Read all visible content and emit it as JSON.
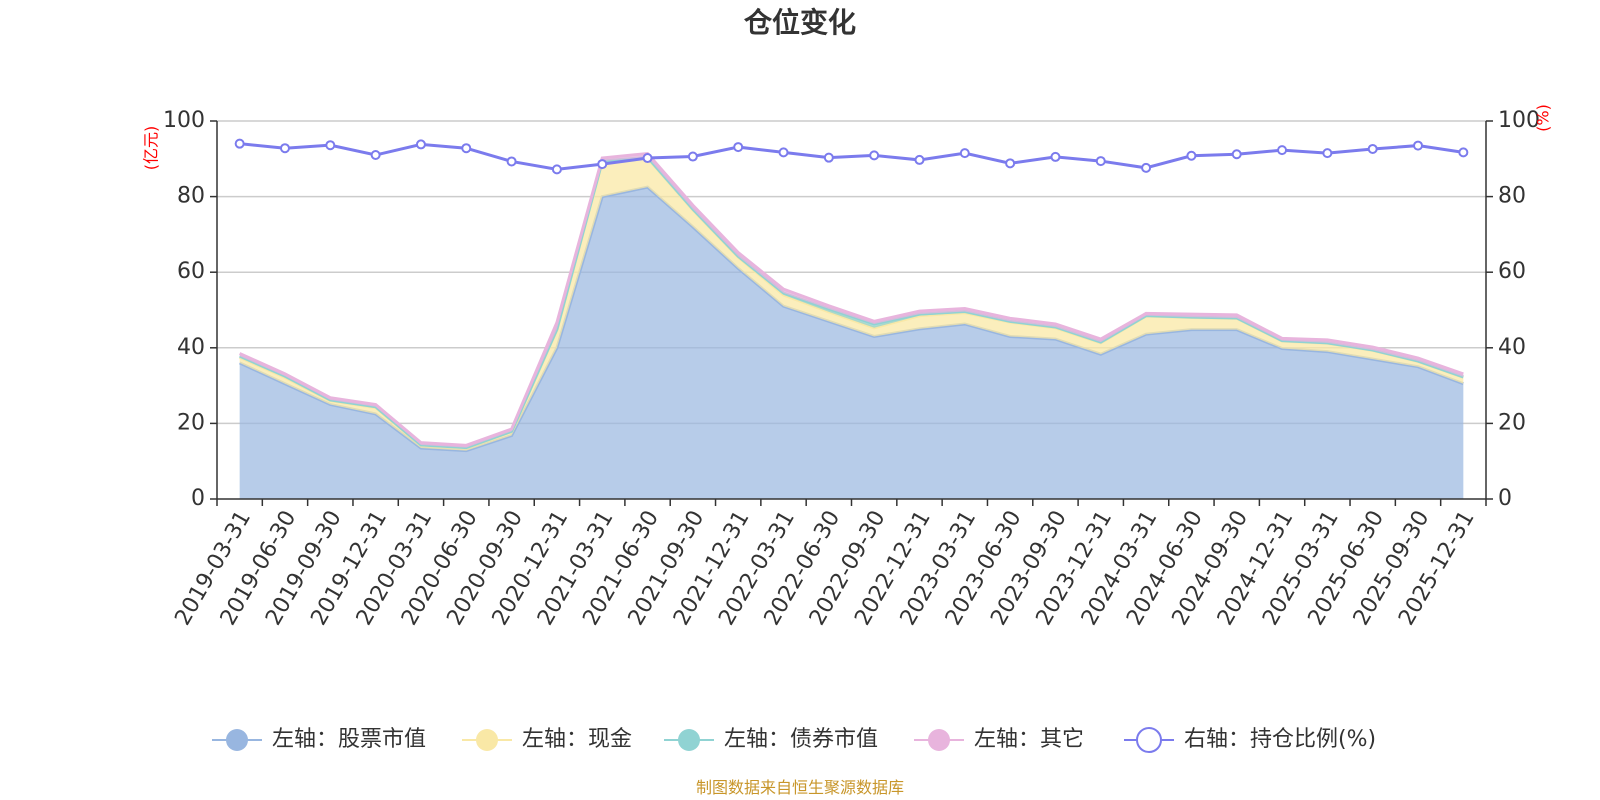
{
  "chart_data": {
    "type": "area",
    "title": "仓位变化",
    "left_unit": "(亿元)",
    "right_unit": "(%)",
    "source": "制图数据来自恒生聚源数据库",
    "ylim_left": [
      0,
      100
    ],
    "ylim_right": [
      0,
      100
    ],
    "yticks_left": [
      "0",
      "20",
      "40",
      "60",
      "80",
      "100"
    ],
    "yticks_right": [
      "0",
      "20",
      "40",
      "60",
      "80",
      "100"
    ],
    "grid": true,
    "legend_position": "bottom",
    "categories": [
      "2019-03-31",
      "2019-06-30",
      "2019-09-30",
      "2019-12-31",
      "2020-03-31",
      "2020-06-30",
      "2020-09-30",
      "2020-12-31",
      "2021-03-31",
      "2021-06-30",
      "2021-09-30",
      "2021-12-31",
      "2022-03-31",
      "2022-06-30",
      "2022-09-30",
      "2022-12-31",
      "2023-03-31",
      "2023-06-30",
      "2023-09-30",
      "2023-12-31",
      "2024-03-31",
      "2024-06-30",
      "2024-09-30",
      "2024-12-31",
      "2025-03-31",
      "2025-06-30",
      "2025-09-30",
      "2025-12-31"
    ],
    "series": [
      {
        "name": "左轴：股票市值",
        "axis": "left",
        "stack": true,
        "color": "#98b6e0",
        "values": [
          36,
          30.5,
          25,
          22.5,
          13.5,
          12.8,
          16.8,
          40,
          80,
          82.5,
          72,
          61,
          51,
          47,
          43,
          45,
          46.3,
          43,
          42.3,
          38.3,
          43.6,
          44.8,
          44.8,
          39.8,
          39,
          37,
          35,
          30.5
        ]
      },
      {
        "name": "左轴：现金",
        "axis": "left",
        "stack": true,
        "color": "#f9e8a6",
        "values": [
          1.5,
          1.7,
          1,
          1.7,
          0.7,
          0.7,
          1,
          4.7,
          9.2,
          7.7,
          4.5,
          3,
          3,
          2.5,
          2.3,
          3.5,
          3,
          3.8,
          3,
          3,
          4.8,
          3.2,
          3,
          2,
          2.2,
          2.3,
          1.4,
          1.7
        ]
      },
      {
        "name": "左轴：债券市值",
        "axis": "left",
        "stack": true,
        "color": "#90d3d3",
        "values": [
          0.3,
          0.3,
          0.2,
          0.2,
          0.1,
          0.1,
          0.1,
          0.2,
          0.2,
          0.2,
          0.2,
          0.2,
          0.5,
          0.8,
          1,
          0.4,
          0.3,
          0.2,
          0.2,
          0.2,
          0.1,
          0.1,
          0.1,
          0.1,
          0.1,
          0.1,
          0.1,
          0.1
        ]
      },
      {
        "name": "左轴：其它",
        "axis": "left",
        "stack": true,
        "color": "#e8b4dd",
        "values": [
          0.7,
          0.6,
          0.6,
          0.6,
          0.6,
          0.6,
          0.6,
          1.8,
          0.8,
          1,
          1,
          1,
          1,
          0.8,
          0.7,
          0.8,
          0.8,
          0.8,
          0.8,
          0.8,
          0.6,
          0.8,
          0.8,
          0.6,
          0.8,
          0.8,
          0.8,
          0.8
        ]
      },
      {
        "name": "右轴：持仓比例(%)",
        "axis": "right",
        "stack": false,
        "color": "#7b7bed",
        "values": [
          94,
          92.8,
          93.6,
          91,
          93.8,
          92.8,
          89.3,
          87.2,
          88.6,
          90.2,
          90.6,
          93.1,
          91.7,
          90.3,
          90.9,
          89.7,
          91.5,
          88.8,
          90.5,
          89.4,
          87.6,
          90.8,
          91.2,
          92.3,
          91.5,
          92.6,
          93.5,
          91.7
        ]
      }
    ]
  }
}
